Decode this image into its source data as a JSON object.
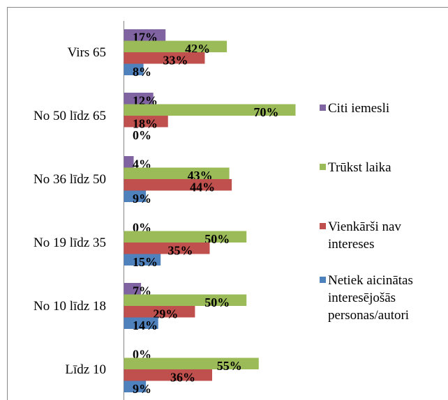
{
  "chart_data": {
    "type": "bar",
    "orientation": "horizontal",
    "categories": [
      "Virs 65",
      "No 50 līdz 65",
      "No 36 līdz 50",
      "No 19 līdz 35",
      "No 10 līdz 18",
      "Līdz 10"
    ],
    "series": [
      {
        "name": "Citi iemesli",
        "color": "#8064a2",
        "values": [
          17,
          12,
          4,
          0,
          7,
          0
        ],
        "value_labels": [
          "17%",
          "12%",
          "4%",
          "0%",
          "7%",
          "0%"
        ]
      },
      {
        "name": "Trūkst laika",
        "color": "#9bbb59",
        "values": [
          42,
          70,
          43,
          50,
          50,
          55
        ],
        "value_labels": [
          "42%",
          "70%",
          "43%",
          "50%",
          "50%",
          "55%"
        ]
      },
      {
        "name": "Vienkārši nav intereses",
        "color": "#c0504d",
        "values": [
          33,
          18,
          44,
          35,
          29,
          36
        ],
        "value_labels": [
          "33%",
          "18%",
          "44%",
          "35%",
          "29%",
          "36%"
        ]
      },
      {
        "name": "Netiek aicinātas interesējošās personas/autori",
        "color": "#4f81bd",
        "values": [
          8,
          0,
          9,
          15,
          14,
          9
        ],
        "value_labels": [
          "8%",
          "0%",
          "9%",
          "15%",
          "14%",
          "9%"
        ]
      }
    ],
    "legend": "right"
  }
}
